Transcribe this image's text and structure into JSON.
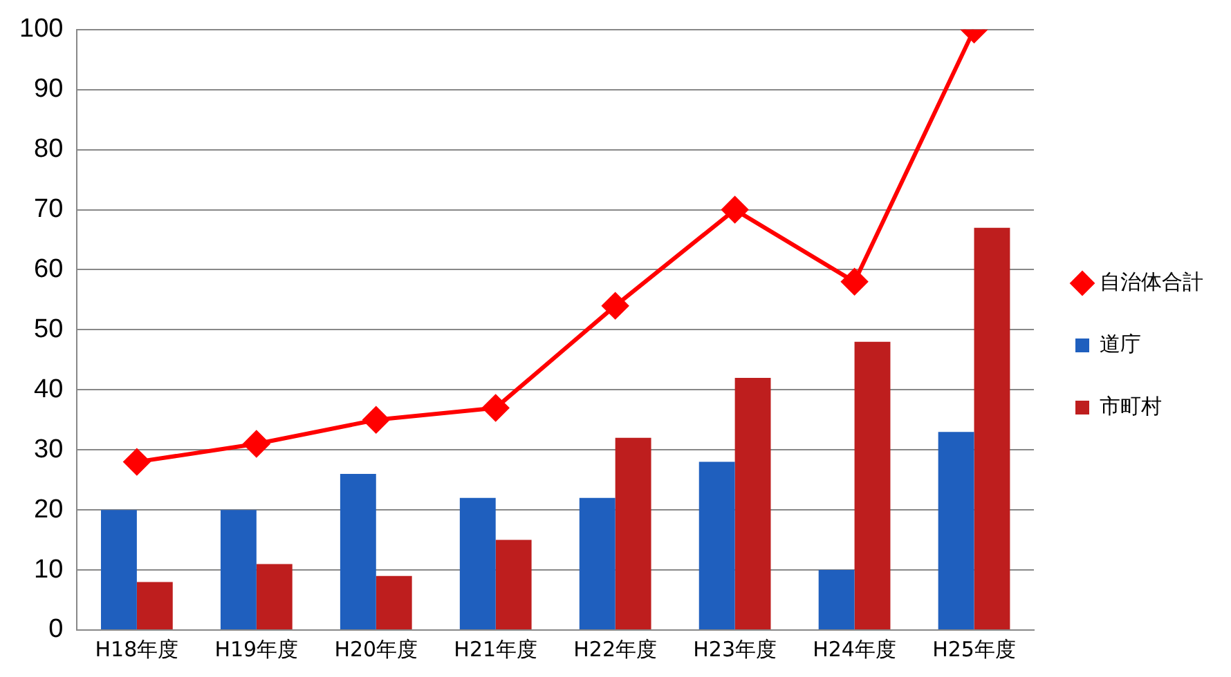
{
  "chart_data": {
    "type": "bar",
    "categories": [
      "H18年度",
      "H19年度",
      "H20年度",
      "H21年度",
      "H22年度",
      "H23年度",
      "H24年度",
      "H25年度"
    ],
    "series": [
      {
        "name": "道庁",
        "color": "#1f5fbe",
        "values": [
          20,
          20,
          26,
          22,
          22,
          28,
          10,
          33
        ]
      },
      {
        "name": "市町村",
        "color": "#be1e1e",
        "values": [
          8,
          11,
          9,
          15,
          32,
          42,
          48,
          67
        ]
      },
      {
        "name": "自治体合計",
        "type": "line",
        "color": "#ff0000",
        "marker": "diamond",
        "values": [
          28,
          31,
          35,
          37,
          54,
          70,
          58,
          100
        ]
      }
    ],
    "ylim": [
      0,
      100
    ],
    "yticks": [
      0,
      10,
      20,
      30,
      40,
      50,
      60,
      70,
      80,
      90,
      100
    ],
    "grid": "y",
    "legend": "right"
  }
}
